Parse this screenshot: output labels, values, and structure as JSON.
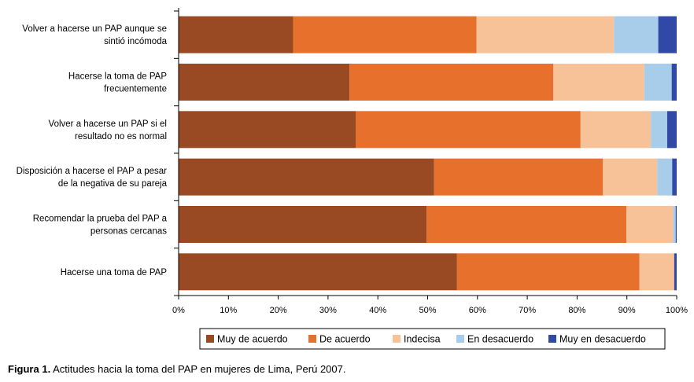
{
  "caption": {
    "label": "Figura 1.",
    "text": " Actitudes hacia la toma del PAP en mujeres de Lima, Perú 2007."
  },
  "chart_data": {
    "type": "bar",
    "orientation": "horizontal",
    "stacked": true,
    "title": "",
    "xlabel": "",
    "ylabel": "",
    "xlim": [
      0,
      100
    ],
    "x_tick_labels": [
      "0%",
      "10%",
      "20%",
      "30%",
      "40%",
      "50%",
      "60%",
      "70%",
      "80%",
      "90%",
      "100%"
    ],
    "legend_position": "bottom",
    "grid": false,
    "categories": [
      [
        "Volver a hacerse un PAP aunque se",
        "sintió incómoda"
      ],
      [
        "Hacerse la toma de PAP",
        "frecuentemente"
      ],
      [
        "Volver a hacerse un PAP si el",
        "resultado no es normal"
      ],
      [
        "Disposición a hacerse el PAP a pesar",
        "de la negativa de su pareja"
      ],
      [
        "Recomendar la prueba del PAP a",
        "personas cercanas"
      ],
      [
        "Hacerse una toma de PAP"
      ]
    ],
    "series": [
      {
        "name": "Muy de acuerdo",
        "color": "#9a4a22",
        "values": [
          23.0,
          34.3,
          35.6,
          51.3,
          49.8,
          55.9
        ]
      },
      {
        "name": "De acuerdo",
        "color": "#e7702c",
        "values": [
          36.8,
          40.9,
          45.1,
          33.9,
          40.1,
          36.6
        ]
      },
      {
        "name": "Indecisa",
        "color": "#f8c298",
        "values": [
          27.6,
          18.3,
          14.1,
          10.9,
          9.4,
          7.0
        ]
      },
      {
        "name": "En desacuerdo",
        "color": "#a7cdea",
        "values": [
          8.9,
          5.5,
          3.3,
          3.0,
          0.5,
          0.0
        ]
      },
      {
        "name": "Muy en desacuerdo",
        "color": "#2f49a4",
        "values": [
          3.7,
          1.0,
          1.9,
          0.9,
          0.2,
          0.5
        ]
      }
    ]
  }
}
